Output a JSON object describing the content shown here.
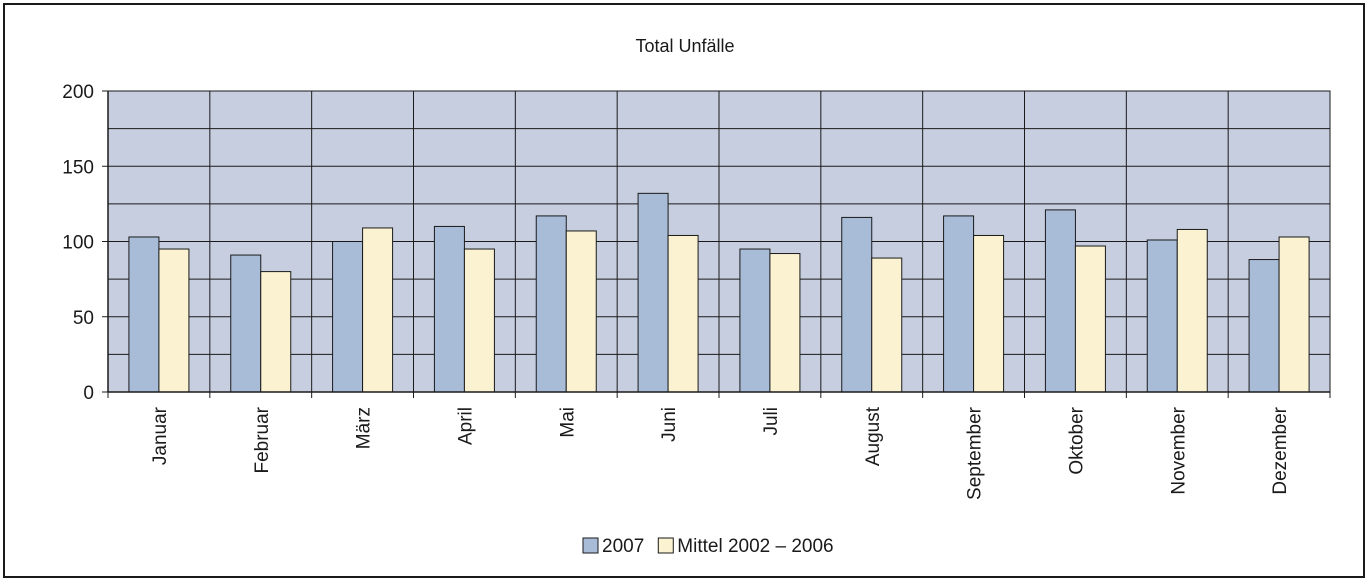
{
  "chart_data": {
    "type": "bar",
    "title": "Total Unfälle",
    "xlabel": "",
    "ylabel": "",
    "ylim": [
      0,
      200
    ],
    "yticks": [
      0,
      50,
      100,
      150,
      200
    ],
    "grid": true,
    "legend_position": "bottom",
    "categories": [
      "Januar",
      "Februar",
      "März",
      "April",
      "Mai",
      "Juni",
      "Juli",
      "August",
      "September",
      "Oktober",
      "November",
      "Dezember"
    ],
    "series": [
      {
        "name": "2007",
        "color": "#a8bcd8",
        "values": [
          103,
          91,
          100,
          110,
          117,
          132,
          95,
          116,
          117,
          121,
          101,
          88
        ]
      },
      {
        "name": "Mittel 2002 – 2006",
        "color": "#faf2d0",
        "values": [
          95,
          80,
          109,
          95,
          107,
          104,
          92,
          89,
          104,
          97,
          108,
          103
        ]
      }
    ],
    "plot_background": "#c6cedf"
  }
}
